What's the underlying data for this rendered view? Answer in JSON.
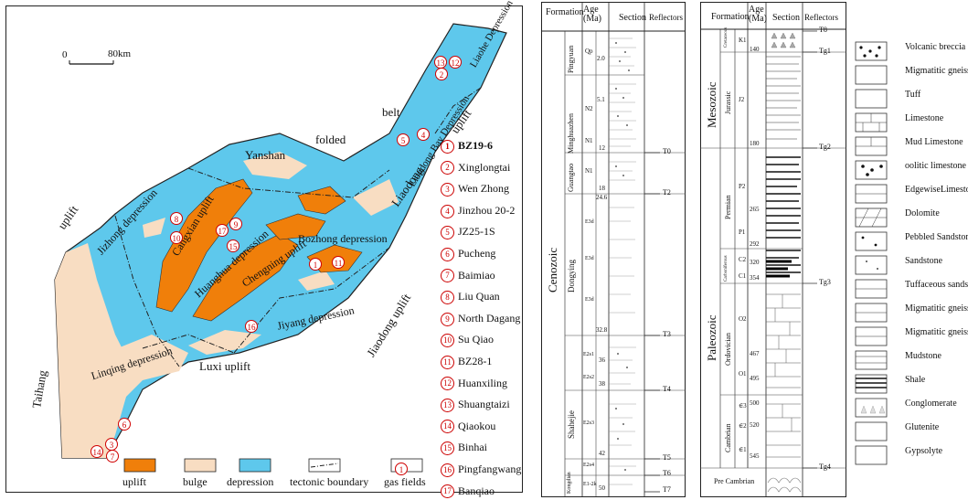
{
  "map": {
    "scale_left": "0",
    "scale_right": "80km",
    "labels": {
      "yanshan": "Yanshan",
      "folded": "folded",
      "belt": "belt",
      "liaodong": "Liaodong",
      "uplift_ne": "uplift",
      "uplift_nw": "uplift",
      "taihang": "Taihang",
      "luxi": "Luxi uplift",
      "jiaodong": "Jiaodong uplift",
      "jizhong": "Jizhong depression",
      "cangxian": "Cangxian uplift",
      "huanghua": "Huanghua depression",
      "chengning": "Chengning uplift",
      "bozhong": "Bozhong depression",
      "jiyang": "Jiyang depression",
      "linqing": "Linqing depression",
      "liaodongbay": "Liaodong Bay Depression",
      "liaohe": "Liaohe Depression"
    },
    "gas_fields": [
      {
        "num": "1",
        "name": "BZ19-6",
        "bold": true
      },
      {
        "num": "2",
        "name": "Xinglongtai"
      },
      {
        "num": "3",
        "name": "Wen Zhong"
      },
      {
        "num": "4",
        "name": "Jinzhou 20-2"
      },
      {
        "num": "5",
        "name": "JZ25-1S"
      },
      {
        "num": "6",
        "name": "Pucheng"
      },
      {
        "num": "7",
        "name": "Baimiao"
      },
      {
        "num": "8",
        "name": "Liu Quan"
      },
      {
        "num": "9",
        "name": "North Dagang"
      },
      {
        "num": "10",
        "name": "Su Qiao"
      },
      {
        "num": "11",
        "name": "BZ28-1"
      },
      {
        "num": "12",
        "name": "Huanxiling"
      },
      {
        "num": "13",
        "name": "Shuangtaizi"
      },
      {
        "num": "14",
        "name": "Qiaokou"
      },
      {
        "num": "15",
        "name": "Binhai"
      },
      {
        "num": "16",
        "name": "Pingfangwang"
      },
      {
        "num": "17",
        "name": "Banqiao"
      }
    ],
    "legend": {
      "uplift": "uplift",
      "bulge": "bulge",
      "depression": "depression",
      "boundary": "tectonic boundary",
      "gasfields": "gas fields",
      "gas_num": "1"
    },
    "colors": {
      "uplift": "#f07f0a",
      "bulge": "#f8ddc2",
      "depression": "#5ec8ec",
      "gas": "#d00000"
    }
  },
  "cenozoic": {
    "headers": {
      "formation": "Formation",
      "age": "Age (Ma)",
      "section": "Section",
      "reflectors": "Reflectors"
    },
    "era": "Cenozoic",
    "formations": [
      "Pingyuan",
      "Minghuazhen",
      "Guangtao",
      "Dongying",
      "Shahejie",
      "Kongdian"
    ],
    "units": [
      "Qp",
      "N2",
      "N1",
      "N1",
      "E3d",
      "E3d",
      "E3d",
      "E2s1",
      "E2s2",
      "E2s3",
      "E2s4",
      "E1-2k"
    ],
    "ages": [
      "2.0",
      "5.1",
      "12",
      "18",
      "24.6",
      "32.8",
      "36",
      "38",
      "42",
      "50"
    ],
    "reflectors": [
      "T0",
      "T2",
      "T3",
      "T4",
      "T5",
      "T6",
      "T7"
    ]
  },
  "mesozoic_paleozoic": {
    "headers": {
      "formation": "Formation",
      "age": "Age (Ma)",
      "section": "Section",
      "reflectors": "Reflectors"
    },
    "eras": [
      "Mesozoic",
      "Paleozoic"
    ],
    "periods": [
      "Cretaceous",
      "Jurassic",
      "Permian",
      "Carboniferous",
      "Ordovician",
      "Cambrian"
    ],
    "precambrian": "Pre Cambrian",
    "units": [
      "K1",
      "J2",
      "P2",
      "P1",
      "C2",
      "C1",
      "O2",
      "O1",
      "∈3",
      "∈2",
      "∈1"
    ],
    "ages": [
      "140",
      "180",
      "265",
      "292",
      "320",
      "354",
      "467",
      "495",
      "500",
      "520",
      "545"
    ],
    "reflectors": [
      "T8",
      "Tg1",
      "Tg2",
      "Tg3",
      "Tg4"
    ]
  },
  "lithology": [
    "Volcanic breccia",
    "Migmatitic gneiss",
    "Tuff",
    "Limestone",
    "Mud Limestone",
    "oolitic limestone",
    "EdgewiseLimestone",
    "Dolomite",
    "Pebbled Sandstone",
    "Sandstone",
    "Tuffaceous sandstone",
    "Migmatitic gneiss",
    "Migmatitic gneiss",
    "Mudstone",
    "Shale",
    "Conglomerate",
    "Glutenite",
    "Gypsolyte"
  ]
}
